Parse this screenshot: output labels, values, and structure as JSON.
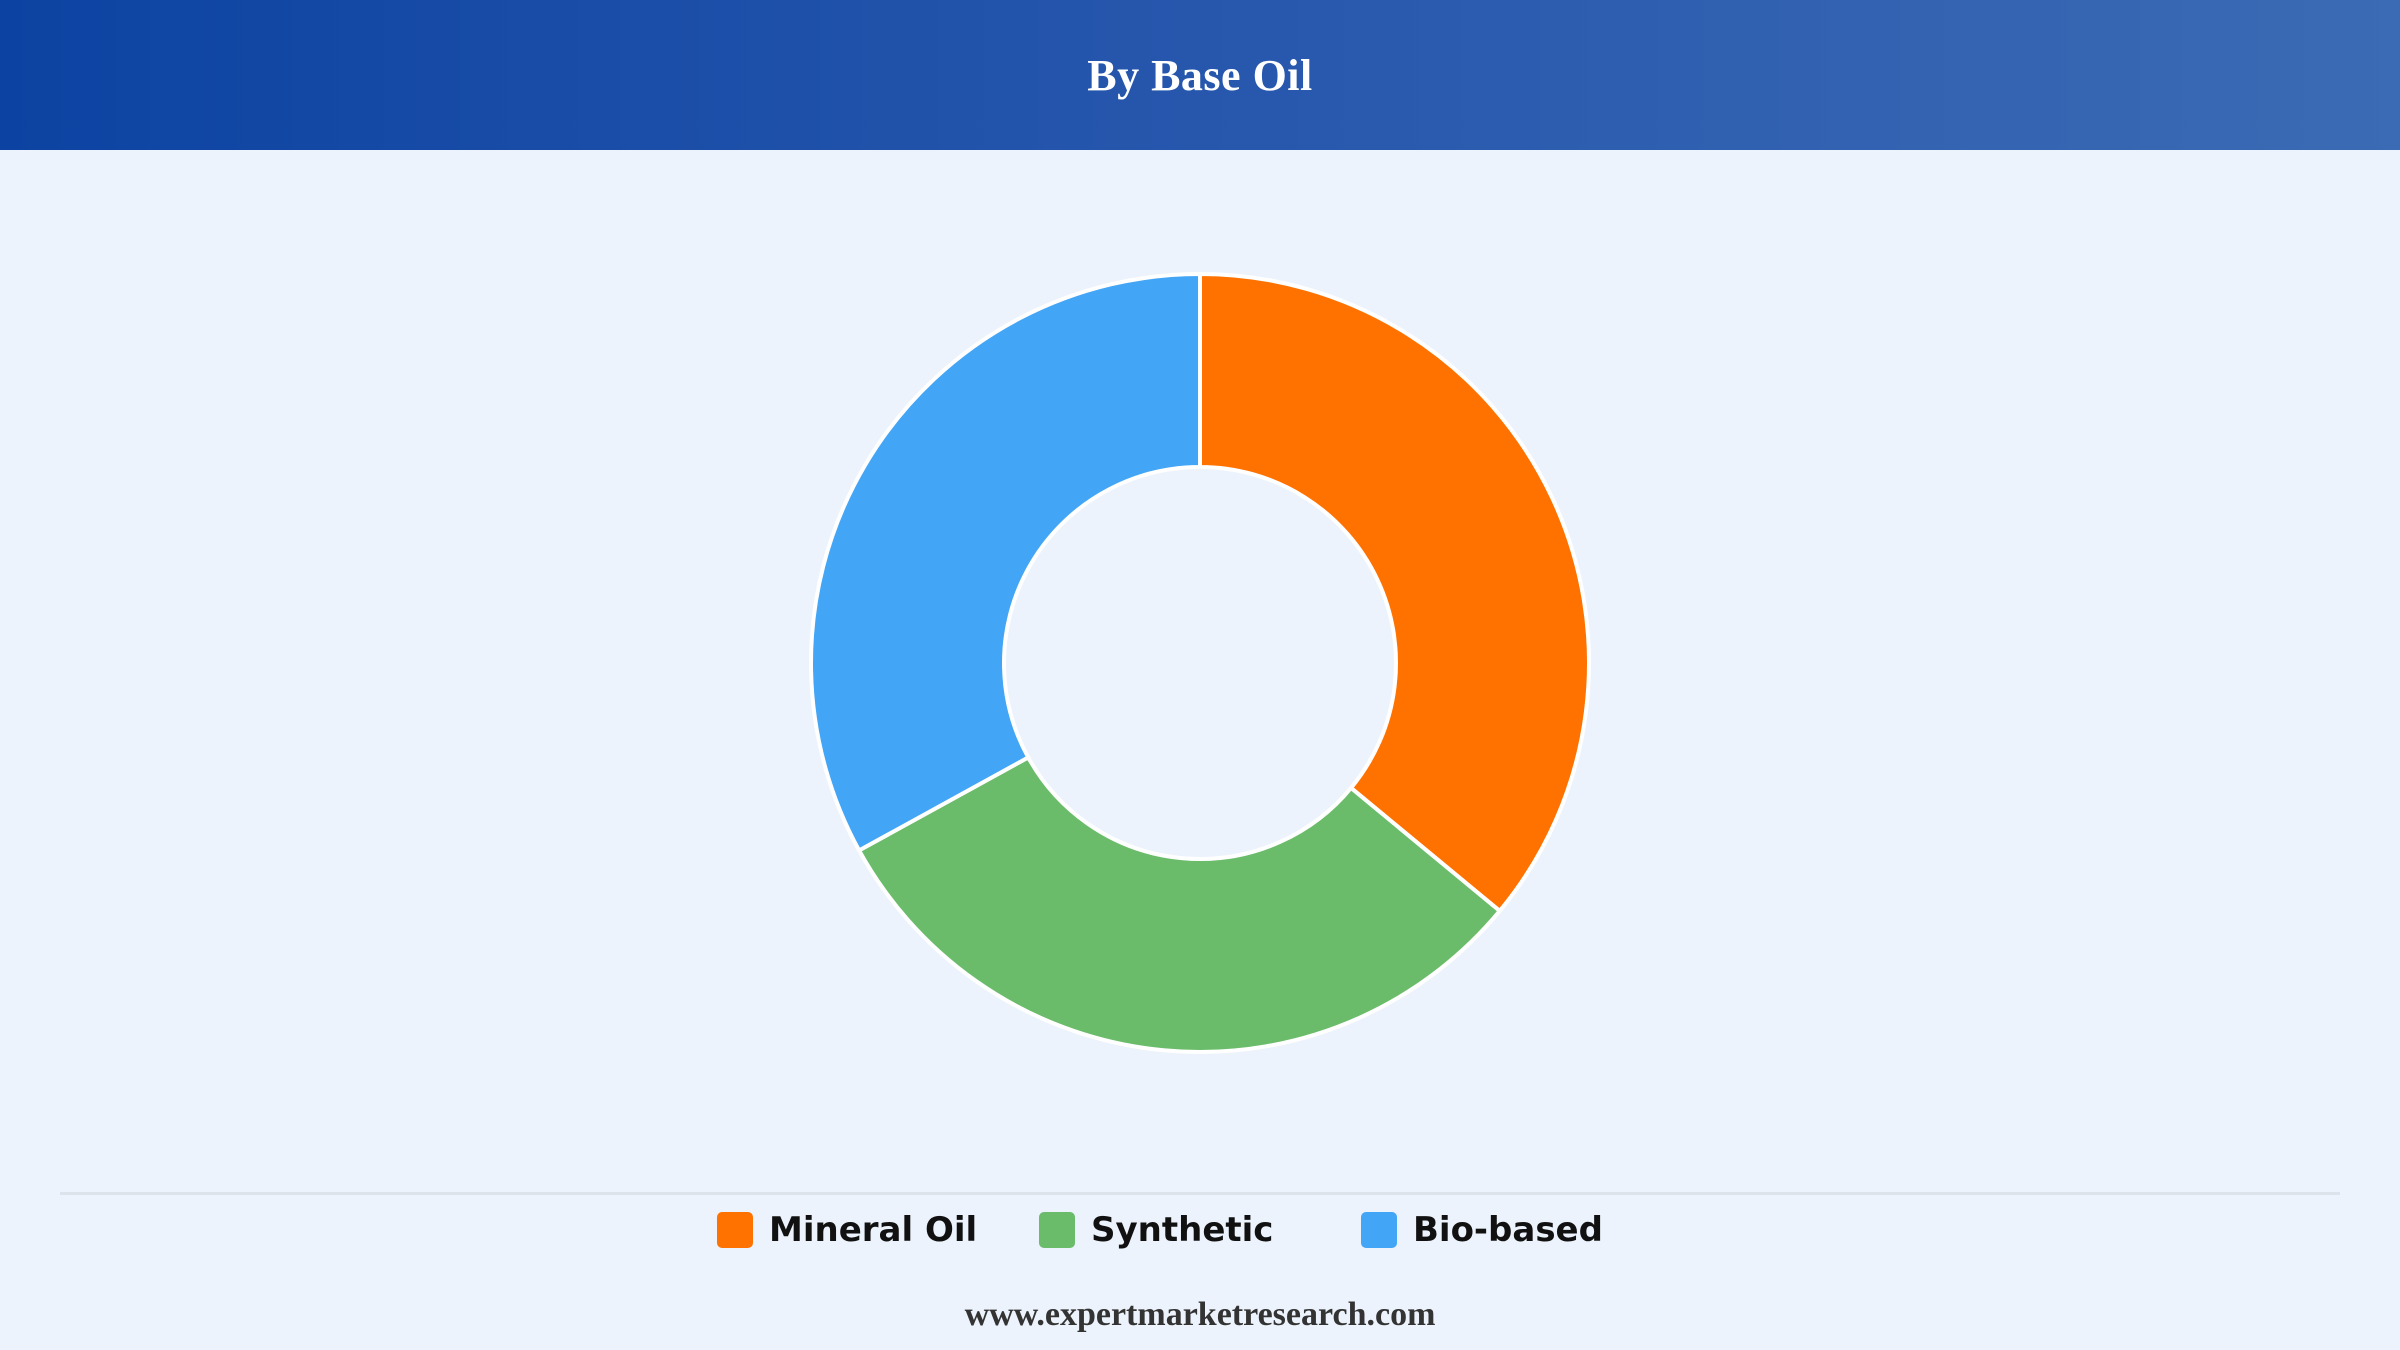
{
  "header": {
    "title": "By Base Oil"
  },
  "chart_data": {
    "type": "pie",
    "variant": "donut",
    "categories": [
      "Mineral Oil",
      "Synthetic",
      "Bio-based"
    ],
    "values": [
      36,
      31,
      33
    ],
    "colors": [
      "#ff7200",
      "#6abc6a",
      "#43a5f5"
    ],
    "legend_position": "bottom",
    "start_angle_deg": 0,
    "direction": "clockwise"
  },
  "legend": {
    "items": [
      {
        "label": "Mineral Oil",
        "color": "#ff7200"
      },
      {
        "label": "Synthetic",
        "color": "#6abc6a"
      },
      {
        "label": "Bio-based",
        "color": "#43a5f5"
      }
    ]
  },
  "footer": {
    "source": "www.expertmarketresearch.com"
  }
}
